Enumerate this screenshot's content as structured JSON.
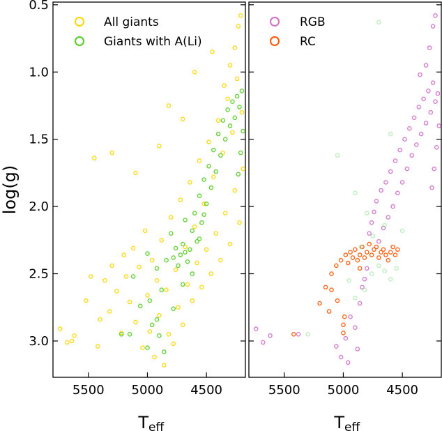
{
  "chart_data": [
    {
      "type": "scatter",
      "panel": "left",
      "xlabel": "T",
      "xlabel_sub": "eff",
      "ylabel": "log(g)",
      "xlim": [
        5800,
        4170
      ],
      "ylim": [
        3.27,
        0.48
      ],
      "x_ticks": [
        5500,
        5000,
        4500
      ],
      "x_tick_labels": [
        "5500",
        "5000",
        "4500"
      ],
      "y_ticks": [
        0.5,
        1.0,
        1.5,
        2.0,
        2.5,
        3.0
      ],
      "y_tick_labels": [
        "0.5",
        "1.0",
        "1.5",
        "2.0",
        "2.5",
        "3.0"
      ],
      "legend_position": "top-left",
      "series": [
        {
          "name": "All giants",
          "color": "#FFD700",
          "points": [
            [
              5740,
              2.91
            ],
            [
              5680,
              3.01
            ],
            [
              5640,
              3.0
            ],
            [
              5620,
              2.96
            ],
            [
              5520,
              2.7
            ],
            [
              5480,
              2.52
            ],
            [
              5420,
              3.04
            ],
            [
              5400,
              2.84
            ],
            [
              5360,
              2.55
            ],
            [
              5320,
              2.78
            ],
            [
              5300,
              2.44
            ],
            [
              5260,
              2.63
            ],
            [
              5220,
              2.94
            ],
            [
              5200,
              2.36
            ],
            [
              5180,
              2.52
            ],
            [
              5150,
              2.71
            ],
            [
              5120,
              2.31
            ],
            [
              5100,
              2.86
            ],
            [
              5070,
              2.45
            ],
            [
              5040,
              3.05
            ],
            [
              5020,
              2.18
            ],
            [
              5000,
              2.66
            ],
            [
              4980,
              2.93
            ],
            [
              4960,
              2.4
            ],
            [
              4940,
              3.12
            ],
            [
              4920,
              2.55
            ],
            [
              4900,
              2.81
            ],
            [
              4880,
              2.25
            ],
            [
              4860,
              3.18
            ],
            [
              4840,
              2.62
            ],
            [
              4820,
              2.95
            ],
            [
              4800,
              2.08
            ],
            [
              4780,
              3.02
            ],
            [
              4760,
              2.47
            ],
            [
              4740,
              2.75
            ],
            [
              4720,
              1.95
            ],
            [
              4700,
              2.88
            ],
            [
              4680,
              2.3
            ],
            [
              4660,
              2.58
            ],
            [
              4640,
              1.82
            ],
            [
              4620,
              2.7
            ],
            [
              4600,
              2.15
            ],
            [
              4580,
              2.42
            ],
            [
              4560,
              1.66
            ],
            [
              4540,
              2.6
            ],
            [
              4520,
              1.98
            ],
            [
              4500,
              2.32
            ],
            [
              4480,
              1.52
            ],
            [
              4460,
              2.5
            ],
            [
              4440,
              1.78
            ],
            [
              4420,
              2.2
            ],
            [
              4400,
              1.36
            ],
            [
              4380,
              2.4
            ],
            [
              4360,
              1.6
            ],
            [
              4340,
              2.05
            ],
            [
              4320,
              1.2
            ],
            [
              4300,
              2.28
            ],
            [
              4280,
              1.45
            ],
            [
              4260,
              1.88
            ],
            [
              4240,
              1.05
            ],
            [
              4220,
              2.12
            ],
            [
              4200,
              1.3
            ],
            [
              4190,
              1.72
            ],
            [
              4260,
              0.82
            ],
            [
              4230,
              0.66
            ],
            [
              4210,
              0.58
            ],
            [
              4300,
              0.95
            ],
            [
              4350,
              1.1
            ],
            [
              4450,
              0.85
            ],
            [
              4700,
              1.35
            ],
            [
              4900,
              1.55
            ],
            [
              5100,
              1.75
            ],
            [
              5450,
              1.64
            ],
            [
              5300,
              1.6
            ],
            [
              4820,
              1.25
            ],
            [
              4600,
              1.0
            ]
          ]
        },
        {
          "name": "Giants with A(Li)",
          "color": "#55CC22",
          "points": [
            [
              5220,
              2.95
            ],
            [
              5120,
              2.52
            ],
            [
              5060,
              2.74
            ],
            [
              5000,
              2.35
            ],
            [
              4960,
              2.88
            ],
            [
              4920,
              2.46
            ],
            [
              4880,
              2.62
            ],
            [
              4840,
              2.4
            ],
            [
              4800,
              2.2
            ],
            [
              4780,
              2.38
            ],
            [
              4760,
              2.31
            ],
            [
              4740,
              2.44
            ],
            [
              4720,
              2.36
            ],
            [
              4700,
              2.28
            ],
            [
              4680,
              2.34
            ],
            [
              4660,
              2.41
            ],
            [
              4640,
              2.32
            ],
            [
              4620,
              2.18
            ],
            [
              4600,
              2.05
            ],
            [
              4580,
              2.26
            ],
            [
              4560,
              1.92
            ],
            [
              4540,
              2.12
            ],
            [
              4520,
              1.8
            ],
            [
              4500,
              1.98
            ],
            [
              4480,
              1.7
            ],
            [
              4460,
              1.86
            ],
            [
              4440,
              1.58
            ],
            [
              4420,
              1.74
            ],
            [
              4400,
              1.46
            ],
            [
              4380,
              1.62
            ],
            [
              4360,
              1.36
            ],
            [
              4340,
              1.5
            ],
            [
              4320,
              1.28
            ],
            [
              4300,
              1.4
            ],
            [
              4280,
              1.22
            ],
            [
              4260,
              1.34
            ],
            [
              4240,
              1.18
            ],
            [
              4220,
              1.26
            ],
            [
              4200,
              1.14
            ],
            [
              4190,
              1.44
            ],
            [
              4210,
              1.6
            ],
            [
              4230,
              1.76
            ],
            [
              4900,
              2.96
            ],
            [
              4860,
              3.08
            ],
            [
              4980,
              2.7
            ],
            [
              4920,
              2.84
            ],
            [
              4700,
              2.58
            ],
            [
              4620,
              2.5
            ],
            [
              5150,
              2.95
            ],
            [
              5000,
              3.05
            ],
            [
              4780,
              2.76
            ],
            [
              4680,
              2.1
            ],
            [
              4560,
              2.24
            ],
            [
              4520,
              2.06
            ]
          ]
        }
      ]
    },
    {
      "type": "scatter",
      "panel": "right",
      "xlabel": "T",
      "xlabel_sub": "eff",
      "xlim": [
        5800,
        4170
      ],
      "ylim": [
        3.27,
        0.48
      ],
      "x_ticks": [
        5500,
        5000,
        4500
      ],
      "x_tick_labels": [
        "5500",
        "5000",
        "4500"
      ],
      "y_ticks": [
        0.5,
        1.0,
        1.5,
        2.0,
        2.5,
        3.0
      ],
      "legend_position": "top-left",
      "series": [
        {
          "name": "RGB",
          "color": "#D070C8",
          "points": [
            [
              5740,
              2.91
            ],
            [
              5680,
              3.01
            ],
            [
              5620,
              2.96
            ],
            [
              5380,
              2.95
            ],
            [
              5060,
              3.04
            ],
            [
              5020,
              3.12
            ],
            [
              4980,
              2.98
            ],
            [
              4960,
              3.16
            ],
            [
              4940,
              2.82
            ],
            [
              4900,
              2.9
            ],
            [
              4880,
              3.06
            ],
            [
              4860,
              2.72
            ],
            [
              4840,
              2.6
            ],
            [
              4820,
              2.54
            ],
            [
              4800,
              2.46
            ],
            [
              4780,
              2.2
            ],
            [
              4760,
              2.12
            ],
            [
              4740,
              2.04
            ],
            [
              4720,
              1.96
            ],
            [
              4700,
              2.26
            ],
            [
              4680,
              1.88
            ],
            [
              4660,
              2.16
            ],
            [
              4640,
              1.82
            ],
            [
              4620,
              2.08
            ],
            [
              4600,
              1.74
            ],
            [
              4580,
              2.0
            ],
            [
              4560,
              1.66
            ],
            [
              4540,
              1.9
            ],
            [
              4520,
              1.58
            ],
            [
              4500,
              1.82
            ],
            [
              4480,
              1.5
            ],
            [
              4460,
              1.72
            ],
            [
              4440,
              1.42
            ],
            [
              4420,
              1.62
            ],
            [
              4400,
              1.34
            ],
            [
              4380,
              1.54
            ],
            [
              4360,
              1.26
            ],
            [
              4340,
              1.46
            ],
            [
              4320,
              1.2
            ],
            [
              4300,
              1.38
            ],
            [
              4280,
              1.14
            ],
            [
              4260,
              1.3
            ],
            [
              4240,
              1.08
            ],
            [
              4220,
              1.22
            ],
            [
              4200,
              1.16
            ],
            [
              4190,
              1.4
            ],
            [
              4210,
              1.56
            ],
            [
              4230,
              1.72
            ],
            [
              4250,
              1.86
            ],
            [
              4270,
              0.82
            ],
            [
              4240,
              0.66
            ],
            [
              4220,
              0.58
            ],
            [
              4300,
              0.95
            ],
            [
              4350,
              1.02
            ]
          ]
        },
        {
          "name": "RC",
          "color": "#FF5500",
          "points": [
            [
              5420,
              2.95
            ],
            [
              5200,
              2.72
            ],
            [
              5150,
              2.6
            ],
            [
              5100,
              2.5
            ],
            [
              5060,
              2.44
            ],
            [
              5020,
              2.4
            ],
            [
              5000,
              2.88
            ],
            [
              4980,
              2.36
            ],
            [
              4960,
              2.42
            ],
            [
              4940,
              2.34
            ],
            [
              4920,
              2.38
            ],
            [
              4900,
              2.32
            ],
            [
              4880,
              2.4
            ],
            [
              4860,
              2.36
            ],
            [
              4840,
              2.3
            ],
            [
              4820,
              2.38
            ],
            [
              4800,
              2.34
            ],
            [
              4780,
              2.28
            ],
            [
              4760,
              2.36
            ],
            [
              4740,
              2.32
            ],
            [
              4720,
              2.3
            ],
            [
              4700,
              2.38
            ],
            [
              4680,
              2.34
            ],
            [
              4660,
              2.32
            ],
            [
              4640,
              2.36
            ],
            [
              4620,
              2.4
            ],
            [
              4600,
              2.34
            ],
            [
              4580,
              2.3
            ],
            [
              4560,
              2.36
            ],
            [
              4540,
              2.32
            ],
            [
              5100,
              2.62
            ],
            [
              5050,
              2.7
            ],
            [
              5000,
              2.94
            ],
            [
              4990,
              2.82
            ],
            [
              5120,
              2.78
            ],
            [
              4860,
              2.46
            ]
          ]
        },
        {
          "name": "",
          "color": "#88E088",
          "points": [
            [
              5300,
              2.95
            ],
            [
              4950,
              2.55
            ],
            [
              4900,
              2.68
            ],
            [
              4820,
              2.62
            ],
            [
              4760,
              2.5
            ],
            [
              4700,
              2.44
            ],
            [
              4650,
              2.48
            ],
            [
              4600,
              2.54
            ],
            [
              4550,
              2.46
            ],
            [
              4500,
              2.18
            ],
            [
              4800,
              2.05
            ],
            [
              4900,
              1.9
            ],
            [
              5050,
              1.62
            ],
            [
              4700,
              0.63
            ],
            [
              4600,
              1.46
            ],
            [
              4750,
              2.22
            ],
            [
              4850,
              2.3
            ],
            [
              4650,
              2.14
            ]
          ]
        }
      ]
    }
  ]
}
